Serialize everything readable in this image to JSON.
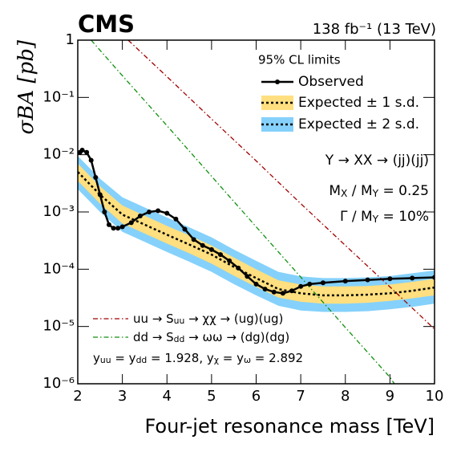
{
  "chart_data": {
    "type": "line",
    "title": "CMS",
    "subtitle": "138 fb⁻¹ (13 TeV)",
    "x_label": "Four-jet resonance mass [TeV]",
    "y_label": "σBA [pb]",
    "legend_title": "95% CL limits",
    "log_y": true,
    "xlim": [
      2,
      10
    ],
    "ylim": [
      1e-06,
      1
    ],
    "xticks": [
      2,
      3,
      4,
      5,
      6,
      7,
      8,
      9,
      10
    ],
    "yticks": [
      {
        "value": 1e-06,
        "label": "10⁻⁶"
      },
      {
        "value": 1e-05,
        "label": "10⁻⁵"
      },
      {
        "value": 0.0001,
        "label": "10⁻⁴"
      },
      {
        "value": 0.001,
        "label": "10⁻³"
      },
      {
        "value": 0.01,
        "label": "10⁻²"
      },
      {
        "value": 0.1,
        "label": "10⁻¹"
      },
      1
    ],
    "series": [
      {
        "name": "Observed",
        "color": "#000000",
        "x": [
          2.05,
          2.1,
          2.2,
          2.3,
          2.4,
          2.5,
          2.6,
          2.7,
          2.8,
          2.9,
          3.0,
          3.2,
          3.4,
          3.6,
          3.8,
          4.0,
          4.2,
          4.4,
          4.6,
          4.8,
          5.0,
          5.2,
          5.4,
          5.6,
          5.8,
          6.0,
          6.2,
          6.4,
          6.6,
          6.8,
          7.0,
          7.2,
          7.5,
          8.0,
          8.5,
          9.0,
          9.5,
          10.0
        ],
        "values": [
          0.011,
          0.012,
          0.011,
          0.008,
          0.004,
          0.002,
          0.001,
          0.0006,
          0.00052,
          0.00052,
          0.00055,
          0.00065,
          0.00085,
          0.001,
          0.00105,
          0.00095,
          0.00075,
          0.0005,
          0.00033,
          0.00026,
          0.00022,
          0.00018,
          0.00014,
          0.000105,
          7.5e-05,
          5.5e-05,
          4.5e-05,
          4e-05,
          3.8e-05,
          4.2e-05,
          5e-05,
          5.5e-05,
          5.8e-05,
          6.2e-05,
          6.5e-05,
          6.8e-05,
          7e-05,
          7.2e-05
        ]
      },
      {
        "name": "Expected ± 1 s.d.",
        "color": "#ffdf7f",
        "x": [
          2.0,
          2.5,
          3.0,
          3.5,
          4.0,
          4.5,
          5.0,
          5.5,
          6.0,
          6.5,
          7.0,
          7.5,
          8.0,
          8.5,
          9.0,
          9.5,
          10.0
        ],
        "values": [
          0.005,
          0.002,
          0.0009,
          0.0006,
          0.0004,
          0.00027,
          0.00018,
          0.00011,
          7e-05,
          4.5e-05,
          3.8e-05,
          3.5e-05,
          3.5e-05,
          3.6e-05,
          3.8e-05,
          4.2e-05,
          4.8e-05
        ],
        "lower": [
          0.0035,
          0.0014,
          0.00063,
          0.00042,
          0.00028,
          0.00019,
          0.000125,
          7.7e-05,
          4.9e-05,
          3.2e-05,
          2.7e-05,
          2.5e-05,
          2.5e-05,
          2.6e-05,
          2.8e-05,
          3.1e-05,
          3.5e-05
        ],
        "upper": [
          0.007,
          0.0028,
          0.0013,
          0.00086,
          0.00057,
          0.00039,
          0.00026,
          0.00016,
          0.0001,
          6.4e-05,
          5.4e-05,
          5e-05,
          5e-05,
          5.1e-05,
          5.4e-05,
          6e-05,
          6.8e-05
        ]
      },
      {
        "name": "Expected ± 2 s.d.",
        "color": "#85d1fb",
        "x": [
          2.0,
          2.5,
          3.0,
          3.5,
          4.0,
          4.5,
          5.0,
          5.5,
          6.0,
          6.5,
          7.0,
          7.5,
          8.0,
          8.5,
          9.0,
          9.5,
          10.0
        ],
        "lower": [
          0.0025,
          0.001,
          0.00045,
          0.0003,
          0.0002,
          0.000135,
          9e-05,
          5.5e-05,
          3.5e-05,
          2.3e-05,
          1.9e-05,
          1.8e-05,
          1.8e-05,
          1.85e-05,
          2e-05,
          2.2e-05,
          2.5e-05
        ],
        "upper": [
          0.0095,
          0.0038,
          0.0018,
          0.0012,
          0.0008,
          0.00054,
          0.00036,
          0.00022,
          0.00014,
          9e-05,
          7.5e-05,
          7e-05,
          7e-05,
          7.2e-05,
          7.6e-05,
          8.5e-05,
          9.5e-05
        ]
      }
    ],
    "theory": [
      {
        "name": [
          "uu → S",
          {
            "sub": "uu"
          },
          " → χχ → (ug)(ug)"
        ],
        "color": "#a00000",
        "x": [
          3.13,
          4,
          5,
          6,
          7,
          8,
          9,
          10
        ],
        "values": [
          1,
          0.23,
          0.042,
          0.0078,
          0.0014,
          0.00026,
          4.9e-05,
          9e-06
        ]
      },
      {
        "name": [
          "dd → S",
          {
            "sub": "dd"
          },
          " → ωω → (dg)(dg)"
        ],
        "color": "#109010",
        "x": [
          2.3,
          3,
          4,
          5,
          6,
          7,
          8,
          9,
          9.1
        ],
        "values": [
          1,
          0.24,
          0.032,
          0.0042,
          0.00055,
          7.3e-05,
          9.6e-06,
          1.3e-06,
          1e-06
        ]
      }
    ],
    "annotations": [
      [
        "Y → XX → (jj)(jj)"
      ],
      [
        "M",
        {
          "sub": "X"
        },
        " / M",
        {
          "sub": "Y"
        },
        " = 0.25"
      ],
      [
        "Γ / M",
        {
          "sub": "Y"
        },
        " = 10%"
      ]
    ],
    "couplings": [
      "y",
      {
        "sub": "uu"
      },
      " = y",
      {
        "sub": "dd"
      },
      " = 1.928, y",
      {
        "sub": "χ"
      },
      " = y",
      {
        "sub": "ω"
      },
      " = 2.892"
    ]
  }
}
